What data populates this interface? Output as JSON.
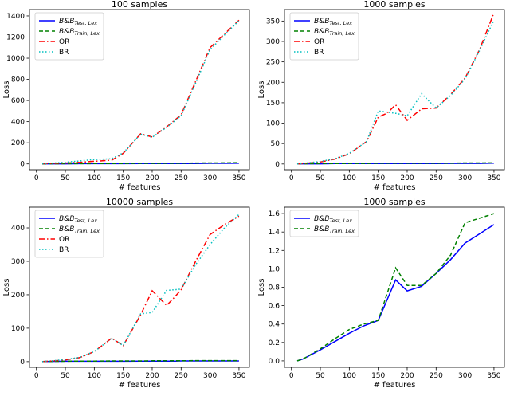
{
  "figure": {
    "background": "#ffffff",
    "text_color": "#000000",
    "frame_color": "#000000",
    "legend_border_color": "#cccccc"
  },
  "chart_data": [
    {
      "type": "line",
      "title": "100 samples",
      "xlabel": "# features",
      "ylabel": "Loss",
      "xlim": [
        -12,
        368
      ],
      "ylim": [
        -55,
        1460
      ],
      "xticks": [
        0,
        50,
        100,
        150,
        200,
        250,
        300,
        350
      ],
      "yticks": [
        0,
        200,
        400,
        600,
        800,
        1000,
        1200,
        1400
      ],
      "ytick_decimals": 0,
      "legend_position": "upper-left",
      "grid": false,
      "x": [
        10,
        50,
        75,
        100,
        130,
        150,
        180,
        200,
        225,
        250,
        275,
        300,
        325,
        350
      ],
      "series": [
        {
          "name_main": "B&B",
          "name_sub": "Test, Lex",
          "color": "#0000ff",
          "style": "solid",
          "values": [
            1,
            1,
            2,
            2,
            2,
            2,
            3,
            3,
            3,
            4,
            4,
            5,
            5,
            6
          ]
        },
        {
          "name_main": "B&B",
          "name_sub": "Train, Lex",
          "color": "#008000",
          "style": "dashed",
          "values": [
            1,
            2,
            2,
            3,
            3,
            4,
            5,
            5,
            6,
            7,
            8,
            9,
            10,
            12
          ]
        },
        {
          "name_main": "OR",
          "name_sub": "",
          "color": "#ff0000",
          "style": "dashdot",
          "values": [
            2,
            8,
            15,
            25,
            35,
            100,
            285,
            255,
            350,
            465,
            780,
            1100,
            1230,
            1360
          ]
        },
        {
          "name_main": "BR",
          "name_sub": "",
          "color": "#00bfbf",
          "style": "dotted",
          "values": [
            2,
            15,
            28,
            42,
            48,
            105,
            282,
            252,
            345,
            455,
            765,
            1080,
            1220,
            1355
          ]
        }
      ]
    },
    {
      "type": "line",
      "title": "1000 samples",
      "xlabel": "# features",
      "ylabel": "Loss",
      "xlim": [
        -12,
        368
      ],
      "ylim": [
        -14,
        378
      ],
      "xticks": [
        0,
        50,
        100,
        150,
        200,
        250,
        300,
        350
      ],
      "yticks": [
        0,
        50,
        100,
        150,
        200,
        250,
        300,
        350
      ],
      "ytick_decimals": 0,
      "legend_position": "upper-left",
      "grid": false,
      "x": [
        10,
        50,
        75,
        100,
        130,
        150,
        165,
        180,
        200,
        225,
        250,
        275,
        300,
        325,
        350
      ],
      "series": [
        {
          "name_main": "B&B",
          "name_sub": "Test, Lex",
          "color": "#0000ff",
          "style": "solid",
          "values": [
            0.5,
            0.5,
            1,
            1,
            1,
            1,
            1,
            1,
            1,
            1,
            1,
            1.5,
            1.5,
            1.5,
            2
          ]
        },
        {
          "name_main": "B&B",
          "name_sub": "Train, Lex",
          "color": "#008000",
          "style": "dashed",
          "values": [
            0.5,
            1,
            1,
            1.5,
            1.5,
            2,
            2,
            2,
            2,
            2,
            2,
            2,
            2.5,
            2.5,
            3
          ]
        },
        {
          "name_main": "OR",
          "name_sub": "",
          "color": "#ff0000",
          "style": "dashdot",
          "values": [
            0,
            5,
            12,
            25,
            55,
            115,
            124,
            145,
            107,
            135,
            137,
            170,
            210,
            280,
            370
          ]
        },
        {
          "name_main": "BR",
          "name_sub": "",
          "color": "#00bfbf",
          "style": "dotted",
          "values": [
            0,
            6,
            13,
            26,
            55,
            130,
            127,
            124,
            118,
            172,
            137,
            168,
            208,
            278,
            352
          ]
        }
      ]
    },
    {
      "type": "line",
      "title": "10000 samples",
      "xlabel": "# features",
      "ylabel": "Loss",
      "xlim": [
        -12,
        368
      ],
      "ylim": [
        -17,
        462
      ],
      "xticks": [
        0,
        50,
        100,
        150,
        200,
        250,
        300,
        350
      ],
      "yticks": [
        0,
        100,
        200,
        300,
        400
      ],
      "ytick_decimals": 0,
      "legend_position": "upper-left",
      "grid": false,
      "x": [
        10,
        50,
        75,
        100,
        130,
        150,
        180,
        200,
        225,
        240,
        250,
        275,
        300,
        325,
        350
      ],
      "series": [
        {
          "name_main": "B&B",
          "name_sub": "Test, Lex",
          "color": "#0000ff",
          "style": "solid",
          "values": [
            0.5,
            1,
            1,
            1,
            1,
            1,
            1.5,
            1.5,
            1.5,
            1.5,
            2,
            2,
            2,
            2,
            2
          ]
        },
        {
          "name_main": "B&B",
          "name_sub": "Train, Lex",
          "color": "#008000",
          "style": "dashed",
          "values": [
            0.5,
            1,
            1.5,
            1.5,
            2,
            2,
            2,
            2.5,
            2.5,
            2.5,
            2.5,
            3,
            3,
            3,
            3
          ]
        },
        {
          "name_main": "OR",
          "name_sub": "",
          "color": "#ff0000",
          "style": "dashdot",
          "values": [
            0,
            5,
            12,
            30,
            70,
            48,
            140,
            212,
            168,
            195,
            215,
            300,
            380,
            410,
            435
          ]
        },
        {
          "name_main": "BR",
          "name_sub": "",
          "color": "#00bfbf",
          "style": "dotted",
          "values": [
            0,
            6,
            13,
            30,
            70,
            48,
            143,
            147,
            213,
            215,
            217,
            290,
            350,
            400,
            440
          ]
        }
      ]
    },
    {
      "type": "line",
      "title": "1000 samples",
      "xlabel": "# features",
      "ylabel": "Loss",
      "xlim": [
        -12,
        368
      ],
      "ylim": [
        -0.07,
        1.67
      ],
      "xticks": [
        0,
        50,
        100,
        150,
        200,
        250,
        300,
        350
      ],
      "yticks": [
        0.0,
        0.2,
        0.4,
        0.6,
        0.8,
        1.0,
        1.2,
        1.4,
        1.6
      ],
      "ytick_decimals": 1,
      "legend_position": "upper-left",
      "grid": false,
      "x": [
        10,
        20,
        50,
        75,
        100,
        125,
        150,
        180,
        200,
        225,
        250,
        275,
        300,
        325,
        350
      ],
      "series": [
        {
          "name_main": "B&B",
          "name_sub": "Test, Lex",
          "color": "#0000ff",
          "style": "solid",
          "values": [
            0.0,
            0.02,
            0.12,
            0.21,
            0.3,
            0.38,
            0.44,
            0.88,
            0.76,
            0.81,
            0.95,
            1.1,
            1.28,
            1.38,
            1.48
          ]
        },
        {
          "name_main": "B&B",
          "name_sub": "Train, Lex",
          "color": "#008000",
          "style": "dashed",
          "values": [
            0.0,
            0.02,
            0.13,
            0.24,
            0.34,
            0.4,
            0.44,
            1.01,
            0.82,
            0.82,
            0.95,
            1.15,
            1.5,
            1.55,
            1.6
          ]
        }
      ]
    }
  ]
}
